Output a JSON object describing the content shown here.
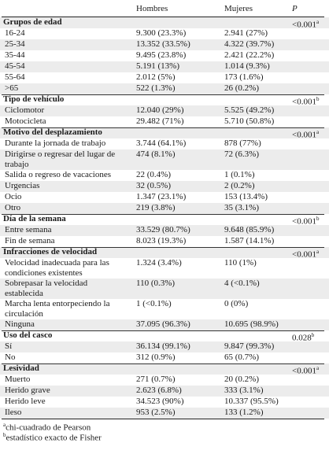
{
  "headers": {
    "col1": "Hombres",
    "col2": "Mujeres",
    "col3": "P"
  },
  "rows": [
    {
      "label": "Grupos de edad",
      "group": true,
      "p": "<0.001",
      "psup": "a"
    },
    {
      "label": "16-24",
      "h": "9.300 (23.3%)",
      "m": "2.941 (27%)"
    },
    {
      "label": "25-34",
      "h": "13.352 (33.5%)",
      "m": "4.322 (39.7%)"
    },
    {
      "label": "35-44",
      "h": "9.495 (23.8%)",
      "m": "2.421 (22.2%)"
    },
    {
      "label": "45-54",
      "h": "5.191 (13%)",
      "m": "1.014 (9.3%)"
    },
    {
      "label": "55-64",
      "h": "2.012 (5%)",
      "m": "173 (1.6%)"
    },
    {
      "label": ">65",
      "h": "522 (1.3%)",
      "m": "26 (0.2%)"
    },
    {
      "label": "Tipo de vehículo",
      "group": true,
      "p": "<0.001",
      "psup": "b"
    },
    {
      "label": "Ciclomotor",
      "h": "12.040 (29%)",
      "m": "5.525 (49.2%)"
    },
    {
      "label": "Motocicleta",
      "h": "29.482 (71%)",
      "m": "5.710 (50.8%)"
    },
    {
      "label": "Motivo del desplazamiento",
      "group": true,
      "p": "<0.001",
      "psup": "a"
    },
    {
      "label": "Durante la jornada de trabajo",
      "h": "3.744 (64.1%)",
      "m": "878 (77%)"
    },
    {
      "label": "Dirigirse o regresar del lugar de trabajo",
      "h": "474 (8.1%)",
      "m": "72 (6.3%)",
      "tall": true
    },
    {
      "label": "Salida o regreso de vacaciones",
      "h": "22 (0.4%)",
      "m": "1 (0.1%)"
    },
    {
      "label": "Urgencias",
      "h": "32 (0.5%)",
      "m": "2 (0.2%)"
    },
    {
      "label": "Ocio",
      "h": "1.347 (23.1%)",
      "m": "153 (13.4%)"
    },
    {
      "label": "Otro",
      "h": "219 (3.8%)",
      "m": "35 (3.1%)"
    },
    {
      "label": "Día de la semana",
      "group": true,
      "p": "<0.001",
      "psup": "b"
    },
    {
      "label": "Entre semana",
      "h": "33.529 (80.7%)",
      "m": "9.648 (85.9%)"
    },
    {
      "label": "Fin de semana",
      "h": "8.023 (19.3%)",
      "m": "1.587 (14.1%)"
    },
    {
      "label": "Infracciones de velocidad",
      "group": true,
      "p": "<0.001",
      "psup": "a"
    },
    {
      "label": "Velocidad inadecuada para las condiciones existentes",
      "h": "1.324 (3.4%)",
      "m": "110 (1%)",
      "tall": true
    },
    {
      "label": "Sobrepasar la velocidad establecida",
      "h": "110 (0.3%)",
      "m": "4 (<0.1%)",
      "tall": true
    },
    {
      "label": "Marcha lenta entorpeciendo la circulación",
      "h": "1 (<0.1%)",
      "m": "0 (0%)",
      "tall": true
    },
    {
      "label": "Ninguna",
      "h": "37.095 (96.3%)",
      "m": "10.695 (98.9%)"
    },
    {
      "label": "Uso del casco",
      "group": true,
      "p": "0.028",
      "psup": "b"
    },
    {
      "label": "Sí",
      "h": "36.134 (99.1%)",
      "m": "9.847 (99.3%)"
    },
    {
      "label": "No",
      "h": "312 (0.9%)",
      "m": "65 (0.7%)"
    },
    {
      "label": "Lesividad",
      "group": true,
      "p": "<0.001",
      "psup": "a"
    },
    {
      "label": "Muerto",
      "h": "271 (0.7%)",
      "m": "20 (0.2%)"
    },
    {
      "label": "Herido grave",
      "h": "2.623 (6.8%)",
      "m": "333 (3.1%)"
    },
    {
      "label": "Herido leve",
      "h": "34.523 (90%)",
      "m": "10.337 (95.5%)"
    },
    {
      "label": "Ileso",
      "h": "953 (2.5%)",
      "m": "133 (1.2%)"
    }
  ],
  "footnotes": [
    {
      "sup": "a",
      "text": "chi-cuadrado de Pearson"
    },
    {
      "sup": "b",
      "text": "estadístico exacto de Fisher"
    }
  ],
  "colors": {
    "row_shade": "#ececec",
    "rule": "#333333"
  }
}
